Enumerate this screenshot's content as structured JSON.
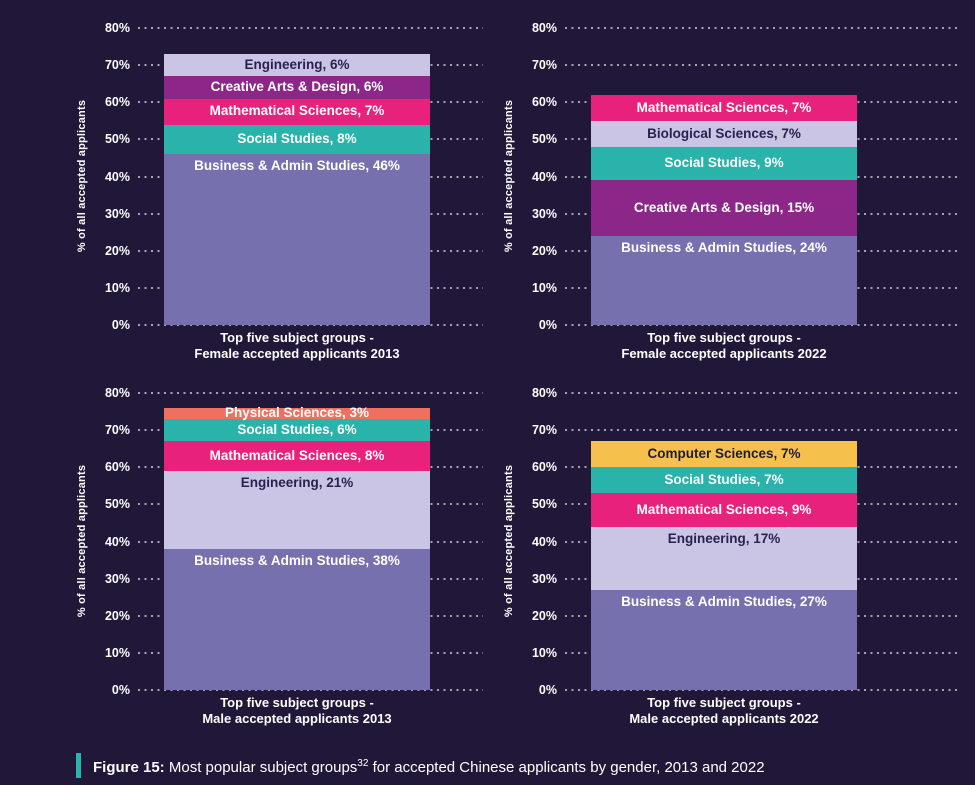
{
  "page": {
    "background_color": "#211839"
  },
  "caption": {
    "accent_color": "#2ab4ab",
    "label": "Figure 15:",
    "text_before_sup": " Most popular subject groups",
    "superscript": "32",
    "text_after_sup": " for accepted Chinese applicants by gender, 2013 and 2022"
  },
  "colors": {
    "business_admin": "#7770ae",
    "social_studies": "#29b3ab",
    "mathematical_sciences": "#e8217c",
    "creative_arts": "#8c2689",
    "engineering_biological": "#cbc5e5",
    "physical_sciences": "#f0705f",
    "computer_sciences": "#f5c04b",
    "grid_dots": "rgba(255,255,255,0.6)",
    "tick_text": "#ffffff",
    "dark_label_text": "#2a2150"
  },
  "chart_data": [
    {
      "type": "bar",
      "stacked": true,
      "title": "Top five subject groups - Female accepted applicants 2013",
      "xlabel_lines": [
        "Top five subject groups -",
        "Female accepted applicants 2013"
      ],
      "ylabel": "% of all accepted applicants",
      "ylim": [
        0,
        80
      ],
      "ytick_step": 10,
      "grid": "dotted-horizontal",
      "segments_bottom_to_top": [
        {
          "label": "Business & Admin Studies",
          "value": 46,
          "color": "#7770ae",
          "text_color": "#ffffff"
        },
        {
          "label": "Social Studies",
          "value": 8,
          "color": "#29b3ab",
          "text_color": "#ffffff"
        },
        {
          "label": "Mathematical Sciences",
          "value": 7,
          "color": "#e8217c",
          "text_color": "#ffffff"
        },
        {
          "label": "Creative Arts & Design",
          "value": 6,
          "color": "#8c2689",
          "text_color": "#ffffff"
        },
        {
          "label": "Engineering",
          "value": 6,
          "color": "#cbc5e5",
          "text_color": "#2a2150"
        }
      ]
    },
    {
      "type": "bar",
      "stacked": true,
      "title": "Top five subject groups - Female accepted applicants 2022",
      "xlabel_lines": [
        "Top five subject groups -",
        "Female accepted applicants 2022"
      ],
      "ylabel": "% of all accepted applicants",
      "ylim": [
        0,
        80
      ],
      "ytick_step": 10,
      "grid": "dotted-horizontal",
      "segments_bottom_to_top": [
        {
          "label": "Business & Admin Studies",
          "value": 24,
          "color": "#7770ae",
          "text_color": "#ffffff"
        },
        {
          "label": "Creative Arts & Design",
          "value": 15,
          "color": "#8c2689",
          "text_color": "#ffffff"
        },
        {
          "label": "Social Studies",
          "value": 9,
          "color": "#29b3ab",
          "text_color": "#ffffff"
        },
        {
          "label": "Biological Sciences",
          "value": 7,
          "color": "#cbc5e5",
          "text_color": "#2a2150"
        },
        {
          "label": "Mathematical Sciences",
          "value": 7,
          "color": "#e8217c",
          "text_color": "#ffffff"
        }
      ]
    },
    {
      "type": "bar",
      "stacked": true,
      "title": "Top five subject groups - Male accepted applicants 2013",
      "xlabel_lines": [
        "Top five subject groups -",
        "Male accepted applicants 2013"
      ],
      "ylabel": "% of all accepted applicants",
      "ylim": [
        0,
        80
      ],
      "ytick_step": 10,
      "grid": "dotted-horizontal",
      "segments_bottom_to_top": [
        {
          "label": "Business & Admin Studies",
          "value": 38,
          "color": "#7770ae",
          "text_color": "#ffffff"
        },
        {
          "label": "Engineering",
          "value": 21,
          "color": "#cbc5e5",
          "text_color": "#2a2150"
        },
        {
          "label": "Mathematical Sciences",
          "value": 8,
          "color": "#e8217c",
          "text_color": "#ffffff"
        },
        {
          "label": "Social Studies",
          "value": 6,
          "color": "#29b3ab",
          "text_color": "#ffffff"
        },
        {
          "label": "Physical Sciences",
          "value": 3,
          "color": "#f0705f",
          "text_color": "#ffffff"
        }
      ]
    },
    {
      "type": "bar",
      "stacked": true,
      "title": "Top five subject groups - Male accepted applicants 2022",
      "xlabel_lines": [
        "Top five subject groups -",
        "Male accepted applicants 2022"
      ],
      "ylabel": "% of all accepted applicants",
      "ylim": [
        0,
        80
      ],
      "ytick_step": 10,
      "grid": "dotted-horizontal",
      "segments_bottom_to_top": [
        {
          "label": "Business & Admin Studies",
          "value": 27,
          "color": "#7770ae",
          "text_color": "#ffffff"
        },
        {
          "label": "Engineering",
          "value": 17,
          "color": "#cbc5e5",
          "text_color": "#2a2150"
        },
        {
          "label": "Mathematical Sciences",
          "value": 9,
          "color": "#e8217c",
          "text_color": "#ffffff"
        },
        {
          "label": "Social Studies",
          "value": 7,
          "color": "#29b3ab",
          "text_color": "#ffffff"
        },
        {
          "label": "Computer Sciences",
          "value": 7,
          "color": "#f5c04b",
          "text_color": "#221a3c"
        }
      ]
    }
  ]
}
